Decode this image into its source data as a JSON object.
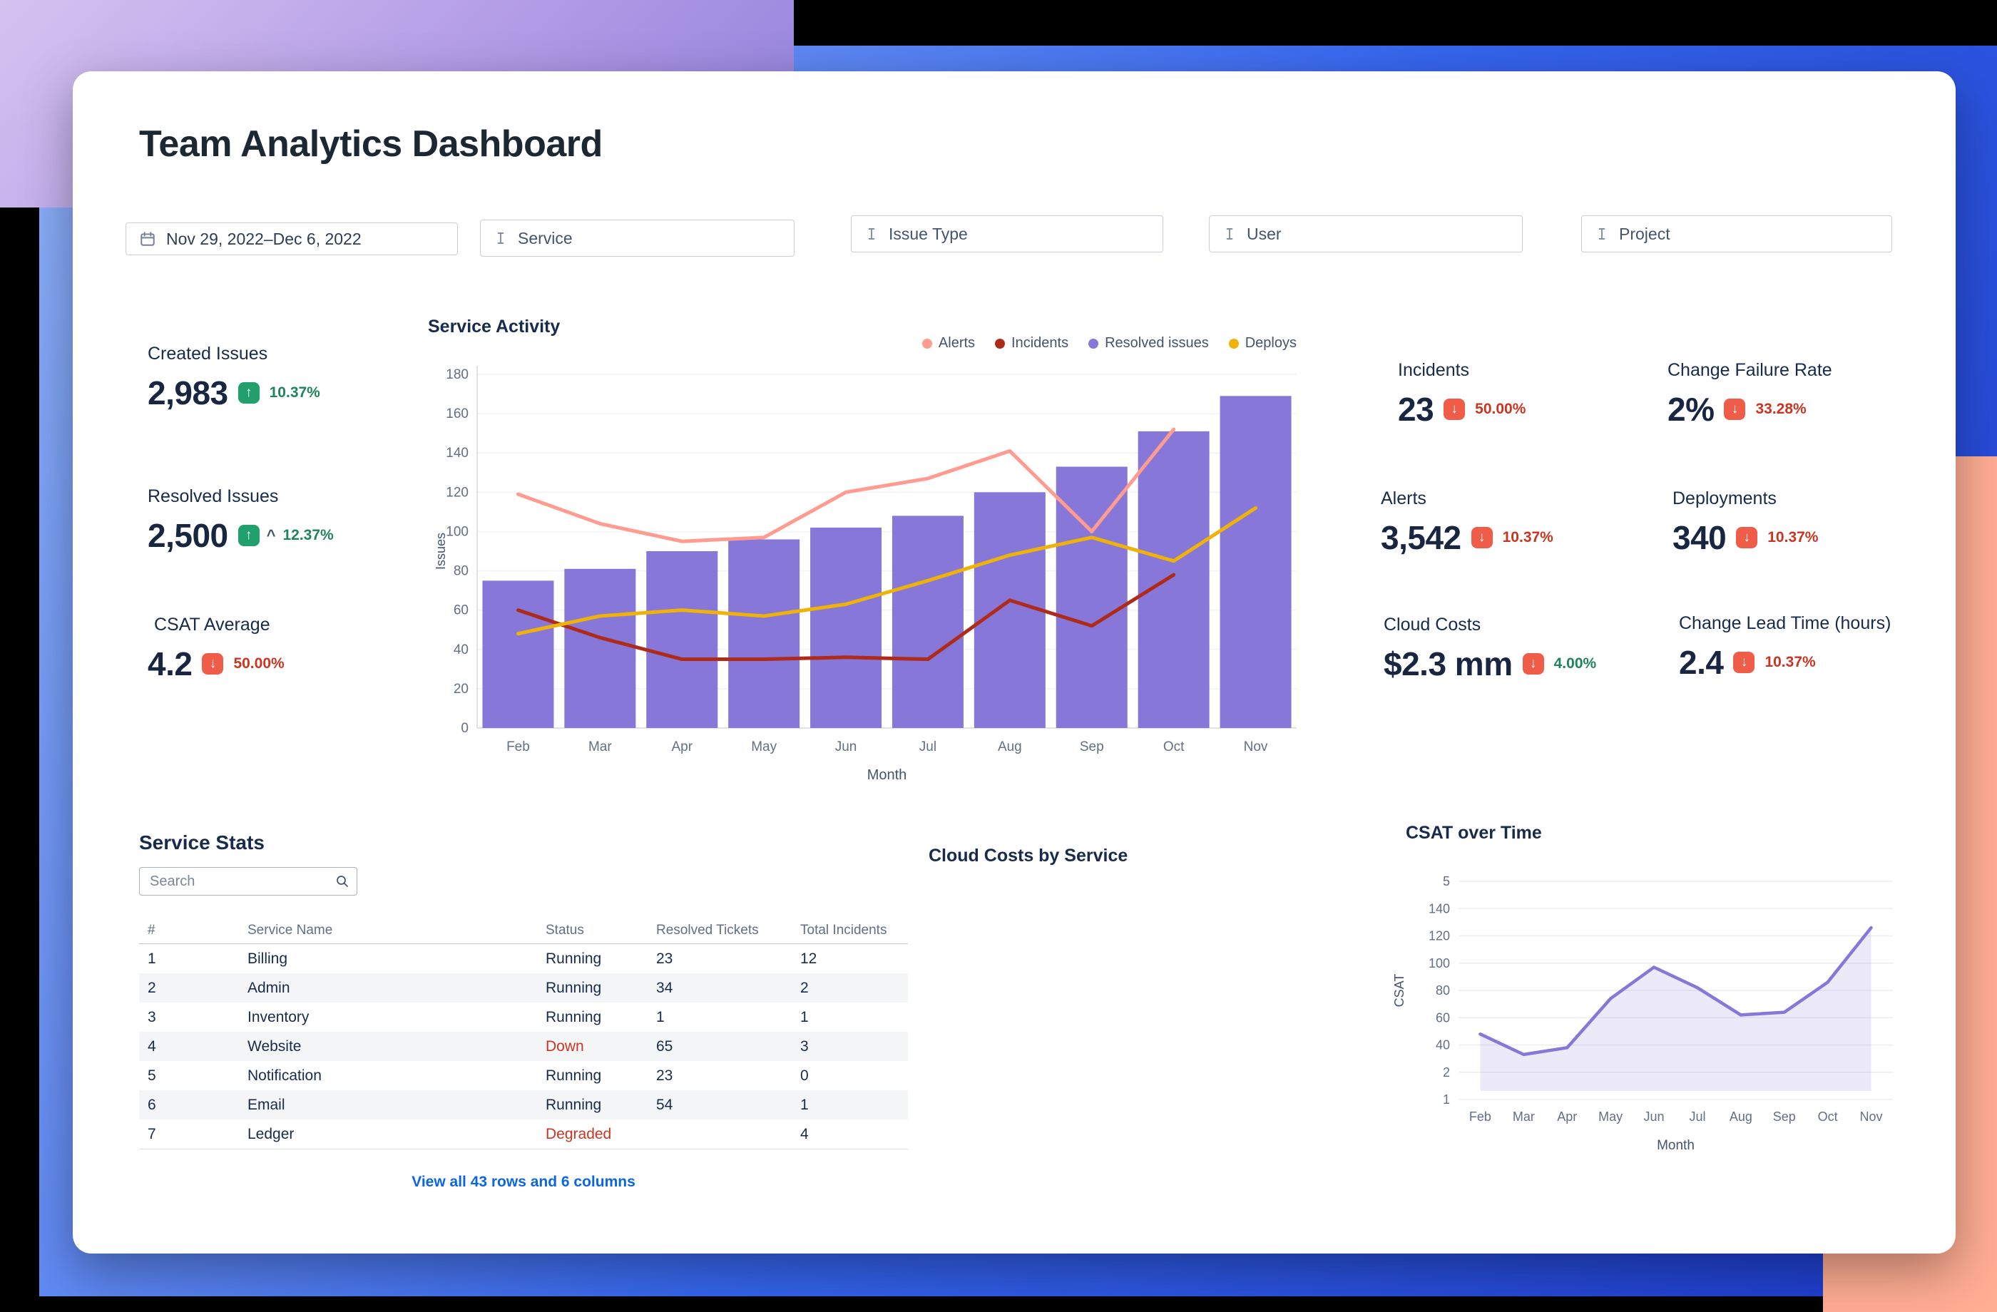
{
  "title": "Team Analytics Dashboard",
  "filters": {
    "date_range": "Nov 29, 2022–Dec 6, 2022",
    "service": "Service",
    "issue_type": "Issue Type",
    "user": "User",
    "project": "Project"
  },
  "kpis": {
    "created_issues": {
      "label": "Created Issues",
      "value": "2,983",
      "delta": "10.37%",
      "direction": "up",
      "tone": "green"
    },
    "resolved_issues": {
      "label": "Resolved Issues",
      "value": "2,500",
      "delta": "12.37%",
      "direction": "up",
      "tone": "green",
      "caret": "^"
    },
    "csat_average": {
      "label": "CSAT Average",
      "value": "4.2",
      "delta": "50.00%",
      "direction": "down",
      "tone": "red"
    },
    "incidents": {
      "label": "Incidents",
      "value": "23",
      "delta": "50.00%",
      "direction": "down",
      "tone": "red"
    },
    "change_failure_rate": {
      "label": "Change Failure Rate",
      "value": "2%",
      "delta": "33.28%",
      "direction": "down",
      "tone": "red"
    },
    "alerts": {
      "label": "Alerts",
      "value": "3,542",
      "delta": "10.37%",
      "direction": "down",
      "tone": "red"
    },
    "deployments": {
      "label": "Deployments",
      "value": "340",
      "delta": "10.37%",
      "direction": "down",
      "tone": "red"
    },
    "cloud_costs": {
      "label": "Cloud Costs",
      "value": "$2.3 mm",
      "delta": "4.00%",
      "direction": "down",
      "tone": "green"
    },
    "change_lead_time": {
      "label": "Change Lead Time (hours)",
      "value": "2.4",
      "delta": "10.37%",
      "direction": "down",
      "tone": "red"
    }
  },
  "service_stats": {
    "title": "Service Stats",
    "search_placeholder": "Search",
    "columns": [
      "#",
      "Service Name",
      "Status",
      "Resolved Tickets",
      "Total Incidents"
    ],
    "rows": [
      {
        "cells": [
          "1",
          "Billing",
          "Running",
          "23",
          "12"
        ]
      },
      {
        "cells": [
          "2",
          "Admin",
          "Running",
          "34",
          "2"
        ]
      },
      {
        "cells": [
          "3",
          "Inventory",
          "Running",
          "1",
          "1"
        ]
      },
      {
        "cells": [
          "4",
          "Website",
          "Down",
          "65",
          "3"
        ]
      },
      {
        "cells": [
          "5",
          "Notification",
          "Running",
          "23",
          "0"
        ]
      },
      {
        "cells": [
          "6",
          "Email",
          "Running",
          "54",
          "1"
        ]
      },
      {
        "cells": [
          "7",
          "Ledger",
          "Degraded",
          "",
          "4"
        ]
      }
    ],
    "footer_link": "View all 43 rows and 6 columns"
  },
  "cloud_costs_by_service": {
    "title": "Cloud Costs by Service"
  },
  "chart_data": [
    {
      "name": "service_activity",
      "type": "bar",
      "title": "Service Activity",
      "xlabel": "Month",
      "ylabel": "Issues",
      "categories": [
        "Feb",
        "Mar",
        "Apr",
        "May",
        "Jun",
        "Jul",
        "Aug",
        "Sep",
        "Oct",
        "Nov"
      ],
      "ylim": [
        0,
        180
      ],
      "yticks": [
        0,
        20,
        40,
        60,
        80,
        100,
        120,
        140,
        160,
        180
      ],
      "legend_position": "top-right",
      "grid": true,
      "series": [
        {
          "name": "Alerts",
          "type": "line",
          "color": "#FF9C8F",
          "values": [
            119,
            104,
            95,
            97,
            120,
            127,
            141,
            100,
            152,
            null
          ]
        },
        {
          "name": "Incidents",
          "type": "line",
          "color": "#AE2A19",
          "values": [
            60,
            46,
            35,
            35,
            36,
            35,
            65,
            52,
            78,
            null
          ]
        },
        {
          "name": "Resolved issues",
          "type": "bar",
          "color": "#8777D9",
          "values": [
            75,
            81,
            90,
            96,
            102,
            108,
            120,
            133,
            151,
            169
          ]
        },
        {
          "name": "Deploys",
          "type": "line",
          "color": "#EFB207",
          "values": [
            48,
            57,
            60,
            57,
            63,
            75,
            88,
            97,
            85,
            112
          ]
        }
      ]
    },
    {
      "name": "csat_over_time",
      "type": "area",
      "title": "CSAT over Time",
      "xlabel": "Month",
      "ylabel": "CSAT",
      "categories": [
        "Feb",
        "Mar",
        "Apr",
        "May",
        "Jun",
        "Jul",
        "Aug",
        "Sep",
        "Oct",
        "Nov"
      ],
      "ytick_labels": [
        "5",
        "140",
        "120",
        "100",
        "80",
        "60",
        "40",
        "2",
        "1"
      ],
      "values": [
        48,
        33,
        38,
        74,
        97,
        82,
        62,
        64,
        86,
        126
      ],
      "color": "#8777D9",
      "fill_color": "rgba(135,119,217,0.16)",
      "grid": true
    }
  ],
  "colors": {
    "accent_purple": "#8777D9",
    "positive_green": "#22A06B",
    "negative_red": "#EF5C48",
    "delta_green_text": "#1F845A",
    "delta_red_text": "#CA3521",
    "link_blue": "#0C66E4",
    "bg_blue": "#3566EE",
    "bg_salmon": "#FFAD93",
    "bg_purple": "#B29BE6"
  }
}
